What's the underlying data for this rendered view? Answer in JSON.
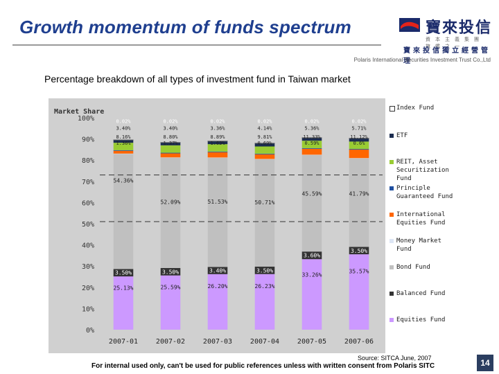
{
  "header": {
    "title": "Growth momentum of funds spectrum",
    "logo_cn": "寶來投信",
    "logo_tagline": "資本主義集團旗艦之一",
    "logo_org": "寶來投信獨立經營管理",
    "company": "Polaris International Securities Investment Trust Co.,Ltd"
  },
  "subtitle": "Percentage breakdown of all types of investment fund in Taiwan market",
  "chart_data": {
    "type": "bar",
    "stacked": true,
    "ylabel": "Market Share",
    "ylim": [
      0,
      100
    ],
    "yticks": [
      "0%",
      "10%",
      "20%",
      "30%",
      "40%",
      "50%",
      "60%",
      "70%",
      "80%",
      "90%",
      "100%"
    ],
    "categories": [
      "2007-01",
      "2007-02",
      "2007-03",
      "2007-04",
      "2007-05",
      "2007-06"
    ],
    "series": [
      {
        "name": "Equities Fund",
        "color": "#cc99ff",
        "values": [
          25.13,
          25.59,
          26.2,
          26.23,
          33.26,
          35.57
        ],
        "labels": [
          "25.13%",
          "25.59%",
          "26.20%",
          "26.23%",
          "33.26%",
          "35.57%"
        ]
      },
      {
        "name": "Balanced Fund",
        "color": "#333333",
        "values": [
          3.5,
          3.5,
          3.4,
          3.5,
          3.6,
          3.5
        ],
        "labels": [
          "3.50%",
          "3.50%",
          "3.40%",
          "3.50%",
          "3.60%",
          "3.50%"
        ]
      },
      {
        "name": "Bond Fund",
        "color": "#c0c0c0",
        "values": [
          54.36,
          52.09,
          51.53,
          50.71,
          45.59,
          41.79
        ],
        "labels": [
          "54.36%",
          "52.09%",
          "51.53%",
          "50.71%",
          "45.59%",
          "41.79%"
        ]
      },
      {
        "name": "Money Market Fund",
        "color": "#dde6f5",
        "values": [
          0.1,
          0.1,
          0.1,
          0.1,
          0.1,
          0.1
        ],
        "labels": [
          "",
          "",
          "",
          "",
          "",
          ""
        ]
      },
      {
        "name": "International Equities Fund",
        "color": "#ff6600",
        "values": [
          1.3,
          1.9,
          2.5,
          2.2,
          2.8,
          4.0
        ],
        "labels": [
          "",
          "",
          "",
          "",
          "",
          ""
        ]
      },
      {
        "name": "Principle Guaranteed Fund",
        "color": "#1f4fa0",
        "values": [
          0.3,
          0.3,
          0.3,
          0.3,
          0.3,
          0.3
        ],
        "labels": [
          "",
          "",
          "",
          "",
          "",
          ""
        ]
      },
      {
        "name": "REIT, Asset Securitization Fund",
        "color": "#99cc33",
        "values": [
          3.5,
          3.5,
          3.5,
          3.4,
          3.5,
          3.5
        ],
        "labels": [
          "",
          "",
          "",
          "",
          "",
          ""
        ]
      },
      {
        "name": "ETF",
        "color": "#1c2d50",
        "values": [
          1.4,
          1.4,
          1.5,
          1.6,
          1.5,
          1.6
        ],
        "labels": [
          "",
          "",
          "",
          "",
          "",
          ""
        ]
      },
      {
        "name": "Index Fund",
        "color": "#ffffff",
        "values": [
          0.02,
          0.02,
          0.02,
          0.02,
          0.02,
          0.02
        ],
        "labels": [
          "",
          "",
          "",
          "",
          "",
          ""
        ]
      }
    ],
    "extra_labels": [
      {
        "category": "2007-01",
        "labels": [
          "0.02%",
          "3.40%",
          "8.16%",
          "1.36%"
        ]
      },
      {
        "category": "2007-02",
        "labels": [
          "0.02%",
          "3.40%",
          "8.80%",
          "1.37%"
        ]
      },
      {
        "category": "2007-03",
        "labels": [
          "0.02%",
          "3.36%",
          "8.89%",
          "1.63%"
        ]
      },
      {
        "category": "2007-04",
        "labels": [
          "0.02%",
          "4.14%",
          "9.81%",
          "0.69%"
        ]
      },
      {
        "category": "2007-05",
        "labels": [
          "0.02%",
          "5.36%",
          "11.33%",
          "0.59%"
        ]
      },
      {
        "category": "2007-06",
        "labels": [
          "0.02%",
          "5.71%",
          "11.12%",
          "0.6%"
        ]
      }
    ],
    "reference_lines": [
      73,
      51
    ],
    "legend_position": "right"
  },
  "legend": [
    {
      "label": "Index Fund",
      "color": "#ffffff"
    },
    {
      "label": "ETF",
      "color": "#1c2d50"
    },
    {
      "label": "REIT, Asset Securitization Fund",
      "color": "#99cc33"
    },
    {
      "label": "Principle Guaranteed Fund",
      "color": "#1f4fa0"
    },
    {
      "label": "International Equities Fund",
      "color": "#ff6600"
    },
    {
      "label": "Money Market Fund",
      "color": "#dde6f5"
    },
    {
      "label": "Bond Fund",
      "color": "#c0c0c0"
    },
    {
      "label": "Balanced Fund",
      "color": "#333333"
    },
    {
      "label": "Equities Fund",
      "color": "#cc99ff"
    }
  ],
  "footer": {
    "source": "Source: SITCA June, 2007",
    "notice": "For internal used only, can't be used for public references unless with written consent from Polaris SITC",
    "page": "14"
  }
}
